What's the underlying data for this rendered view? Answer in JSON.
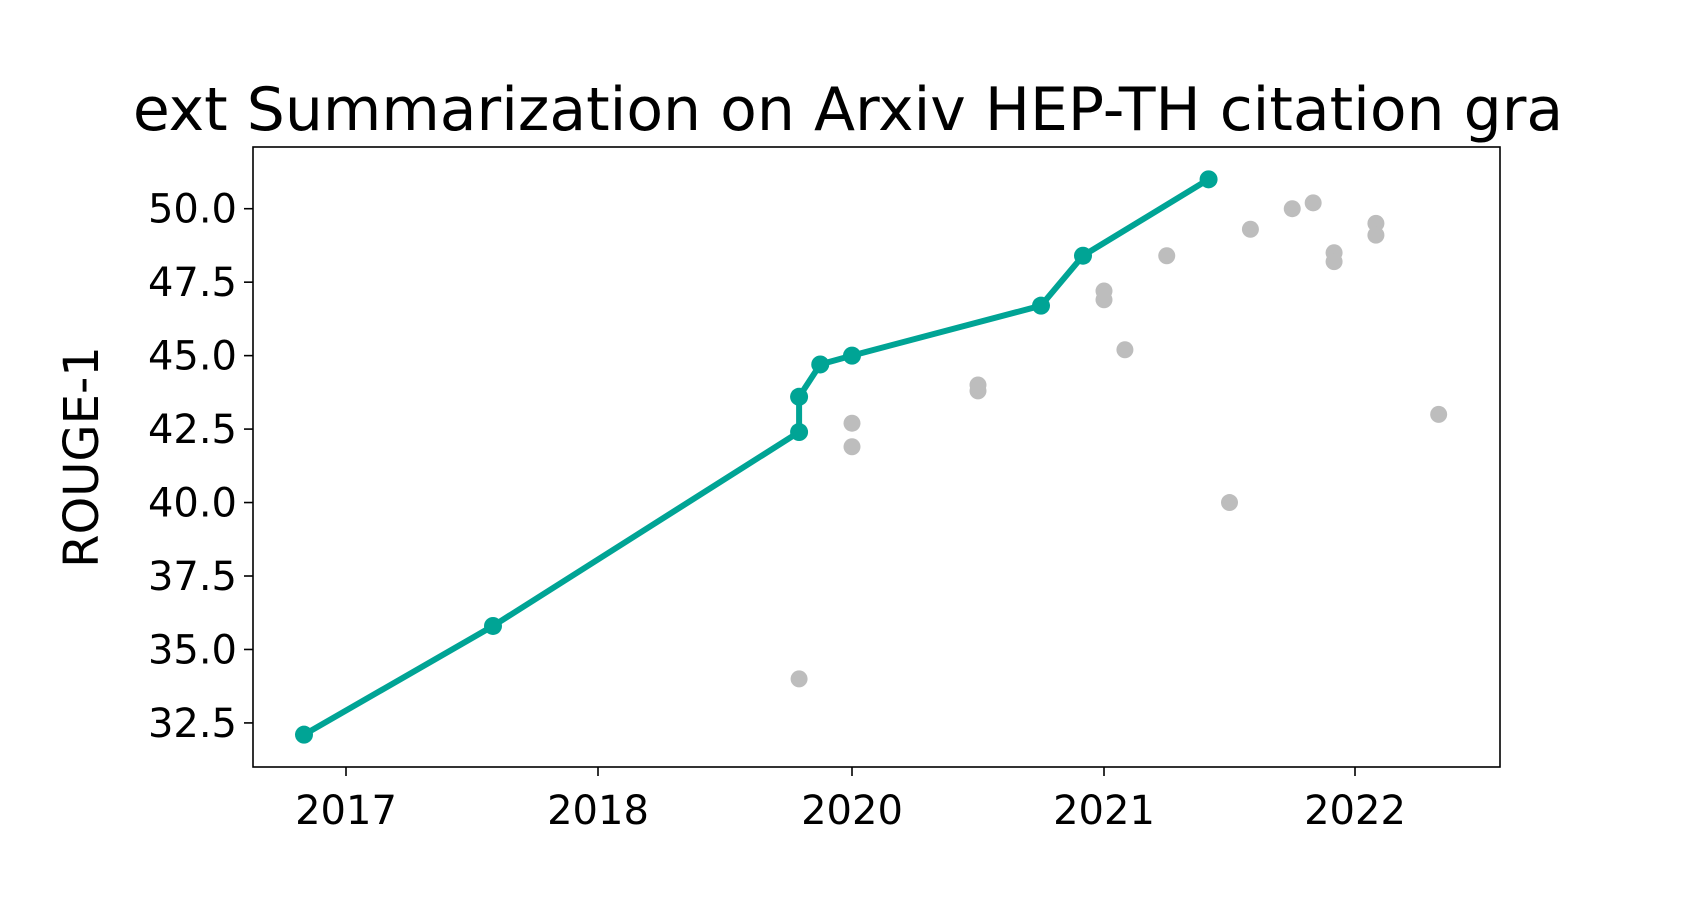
{
  "chart_data": {
    "type": "scatter",
    "title": "ext Summarization on Arxiv HEP-TH citation gra",
    "xlabel": "",
    "ylabel": "ROUGE-1",
    "x_tick_labels": [
      "2017",
      "2018",
      "2020",
      "2021",
      "2022"
    ],
    "y_tick_labels": [
      "32.5",
      "35.0",
      "37.5",
      "40.0",
      "42.5",
      "45.0",
      "47.5",
      "50.0"
    ],
    "ylim": [
      31.0,
      52.1
    ],
    "grid": false,
    "colors": {
      "sota": "#00a495",
      "other": "#bdbdbd"
    },
    "series": [
      {
        "role": "state-of-the-art",
        "style": "line+markers",
        "points": [
          {
            "x": "2016-11",
            "y": 32.1
          },
          {
            "x": "2017-08",
            "y": 35.8
          },
          {
            "x": "2019-08",
            "y": 42.4
          },
          {
            "x": "2019-08",
            "y": 43.6
          },
          {
            "x": "2019-10",
            "y": 44.7
          },
          {
            "x": "2020-01",
            "y": 45.0
          },
          {
            "x": "2020-10",
            "y": 46.7
          },
          {
            "x": "2020-12",
            "y": 48.4
          },
          {
            "x": "2021-06",
            "y": 51.0
          }
        ]
      },
      {
        "role": "other",
        "style": "markers",
        "points": [
          {
            "x": "2019-08",
            "y": 34.0
          },
          {
            "x": "2020-01",
            "y": 42.7
          },
          {
            "x": "2020-01",
            "y": 41.9
          },
          {
            "x": "2020-07",
            "y": 44.0
          },
          {
            "x": "2020-07",
            "y": 43.8
          },
          {
            "x": "2021-01",
            "y": 47.2
          },
          {
            "x": "2021-01",
            "y": 46.9
          },
          {
            "x": "2021-02",
            "y": 45.2
          },
          {
            "x": "2021-04",
            "y": 48.4
          },
          {
            "x": "2021-07",
            "y": 40.0
          },
          {
            "x": "2021-08",
            "y": 49.3
          },
          {
            "x": "2021-10",
            "y": 50.0
          },
          {
            "x": "2021-11",
            "y": 50.2
          },
          {
            "x": "2021-12",
            "y": 48.5
          },
          {
            "x": "2021-12",
            "y": 48.2
          },
          {
            "x": "2022-02",
            "y": 49.5
          },
          {
            "x": "2022-02",
            "y": 49.1
          },
          {
            "x": "2022-05",
            "y": 43.0
          }
        ]
      }
    ]
  }
}
